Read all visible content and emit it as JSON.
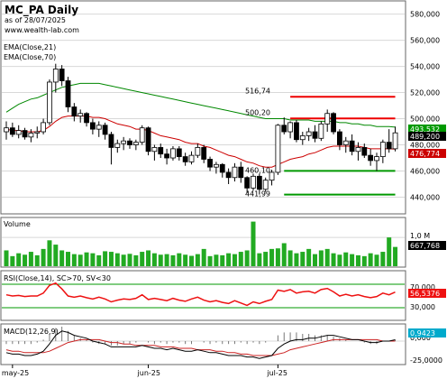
{
  "header": {
    "title": "MC_PA Daily",
    "date": "as of 28/07/2025",
    "site": "www.wealth-lab.com",
    "ema21": "EMA(Close,21)",
    "ema70": "EMA(Close,70)"
  },
  "colors": {
    "up": "#ffffff",
    "down": "#000000",
    "ema21": "#cc0000",
    "ema70": "#008800",
    "volume": "#22aa22",
    "rsi": "#ee1111",
    "macd": "#000000",
    "signal": "#cc2222",
    "hist": "#777777",
    "resistance": "#ee0000",
    "support": "#009900"
  },
  "price_panel": {
    "ymin": 430,
    "ymax": 588,
    "ticks": [
      "440,000",
      "460,000",
      "480,000",
      "500,000",
      "520,000",
      "540,000",
      "560,000",
      "580,000"
    ],
    "annotations": [
      {
        "text": "516,74",
        "value": 516.74
      },
      {
        "text": "500,20",
        "value": 500.2
      },
      {
        "text": "460,10",
        "value": 460.1
      },
      {
        "text": "441,99",
        "value": 441.99
      }
    ],
    "levels": [
      {
        "value": 516.74,
        "role": "resistance",
        "from": 46,
        "to": 63
      },
      {
        "value": 500.2,
        "role": "resistance",
        "from": 46,
        "to": 63
      },
      {
        "value": 460.1,
        "role": "support",
        "from": 45,
        "to": 63
      },
      {
        "value": 441.99,
        "role": "support",
        "from": 45,
        "to": 63
      }
    ],
    "last_close_label": "489,200",
    "ema21_label": "476,774",
    "ema70_label": "493,532"
  },
  "volume_panel": {
    "label": "Volume",
    "ticks": [
      "1,0 M"
    ],
    "last_label": "667,768"
  },
  "rsi_panel": {
    "label": "RSI(Close,14), SC>70, SV<30",
    "ticks": [
      "70,000",
      "30,000"
    ],
    "last_label": "56,5376",
    "levels": [
      70,
      30
    ]
  },
  "macd_panel": {
    "label": "MACD(12,26,9)",
    "ticks": [
      "0,000",
      "-25,0000"
    ],
    "last_label": "0,9423"
  },
  "x_axis": {
    "labels": [
      "may-25",
      "jun-25",
      "jul-25"
    ],
    "label_bars": [
      1,
      23,
      44
    ]
  },
  "chart_data": {
    "type": "candlestick",
    "ohlc": [
      [
        490,
        498,
        484,
        493
      ],
      [
        493,
        497,
        486,
        488
      ],
      [
        488,
        495,
        485,
        491
      ],
      [
        491,
        493,
        484,
        486
      ],
      [
        486,
        492,
        482,
        489
      ],
      [
        489,
        494,
        485,
        490
      ],
      [
        490,
        500,
        488,
        497
      ],
      [
        497,
        530,
        495,
        528
      ],
      [
        528,
        542,
        520,
        538
      ],
      [
        538,
        541,
        525,
        529
      ],
      [
        529,
        532,
        505,
        509
      ],
      [
        509,
        512,
        498,
        502
      ],
      [
        502,
        507,
        497,
        504
      ],
      [
        504,
        505,
        494,
        497
      ],
      [
        497,
        500,
        488,
        492
      ],
      [
        492,
        498,
        486,
        495
      ],
      [
        495,
        497,
        484,
        488
      ],
      [
        488,
        490,
        465,
        478
      ],
      [
        478,
        484,
        474,
        481
      ],
      [
        481,
        486,
        476,
        483
      ],
      [
        483,
        485,
        477,
        480
      ],
      [
        480,
        484,
        476,
        482
      ],
      [
        482,
        495,
        480,
        493
      ],
      [
        493,
        494,
        472,
        475
      ],
      [
        475,
        480,
        468,
        478
      ],
      [
        478,
        481,
        470,
        473
      ],
      [
        473,
        477,
        465,
        470
      ],
      [
        470,
        479,
        468,
        477
      ],
      [
        477,
        479,
        468,
        471
      ],
      [
        471,
        474,
        464,
        467
      ],
      [
        467,
        475,
        465,
        472
      ],
      [
        472,
        481,
        470,
        478
      ],
      [
        478,
        480,
        466,
        469
      ],
      [
        469,
        471,
        460,
        463
      ],
      [
        463,
        467,
        458,
        465
      ],
      [
        465,
        466,
        455,
        459
      ],
      [
        459,
        462,
        450,
        455
      ],
      [
        455,
        466,
        452,
        463
      ],
      [
        463,
        467,
        451,
        455
      ],
      [
        455,
        456,
        443,
        447
      ],
      [
        447,
        458,
        445,
        456
      ],
      [
        456,
        458,
        442,
        446
      ],
      [
        446,
        455,
        444,
        453
      ],
      [
        453,
        461,
        449,
        459
      ],
      [
        459,
        496,
        457,
        495
      ],
      [
        495,
        501,
        488,
        490
      ],
      [
        490,
        498,
        485,
        497
      ],
      [
        497,
        499,
        482,
        484
      ],
      [
        484,
        490,
        480,
        487
      ],
      [
        487,
        493,
        483,
        490
      ],
      [
        490,
        495,
        482,
        485
      ],
      [
        485,
        498,
        483,
        496
      ],
      [
        496,
        507,
        490,
        504
      ],
      [
        504,
        505,
        488,
        490
      ],
      [
        490,
        492,
        476,
        480
      ],
      [
        480,
        486,
        474,
        483
      ],
      [
        483,
        488,
        472,
        475
      ],
      [
        475,
        482,
        468,
        478
      ],
      [
        478,
        481,
        470,
        472
      ],
      [
        472,
        477,
        464,
        468
      ],
      [
        468,
        474,
        460,
        471
      ],
      [
        471,
        484,
        466,
        482
      ],
      [
        482,
        492,
        474,
        477
      ],
      [
        477,
        494,
        475,
        489.2
      ]
    ],
    "ema21": [
      492,
      491,
      491,
      490,
      490,
      490,
      491,
      494,
      498,
      501,
      502,
      502,
      502,
      502,
      501,
      501,
      500,
      498,
      496,
      495,
      494,
      492,
      492,
      491,
      489,
      487,
      486,
      485,
      484,
      482,
      481,
      481,
      479,
      478,
      476,
      474,
      472,
      471,
      469,
      467,
      466,
      464,
      463,
      463,
      465,
      467,
      469,
      470,
      471,
      473,
      474,
      476,
      478,
      479,
      479,
      479,
      479,
      479,
      478,
      477,
      477,
      477,
      477,
      476.77
    ],
    "ema70": [
      505,
      508,
      511,
      513,
      515,
      516,
      518,
      520,
      522,
      524,
      525,
      526,
      527,
      527,
      527,
      527,
      526,
      525,
      524,
      523,
      522,
      521,
      520,
      519,
      518,
      517,
      516,
      515,
      514,
      513,
      512,
      511,
      510,
      509,
      508,
      507,
      506,
      505,
      504,
      503,
      502,
      501,
      500,
      500,
      500,
      500,
      499,
      499,
      499,
      499,
      498,
      498,
      498,
      498,
      497,
      497,
      496,
      496,
      495,
      495,
      494,
      494,
      494,
      493.53
    ],
    "volume": [
      0.55,
      0.35,
      0.45,
      0.4,
      0.5,
      0.38,
      0.6,
      0.9,
      0.75,
      0.55,
      0.5,
      0.42,
      0.4,
      0.48,
      0.45,
      0.38,
      0.52,
      0.5,
      0.45,
      0.4,
      0.43,
      0.38,
      0.5,
      0.55,
      0.45,
      0.4,
      0.42,
      0.38,
      0.45,
      0.4,
      0.36,
      0.42,
      0.6,
      0.35,
      0.4,
      0.38,
      0.45,
      0.42,
      0.5,
      0.55,
      1.55,
      0.45,
      0.5,
      0.6,
      0.62,
      0.8,
      0.55,
      0.45,
      0.5,
      0.6,
      0.42,
      0.55,
      0.6,
      0.45,
      0.4,
      0.48,
      0.42,
      0.38,
      0.35,
      0.45,
      0.4,
      0.5,
      1.0,
      0.67
    ],
    "rsi": [
      52,
      50,
      51,
      49,
      50,
      50,
      55,
      68,
      72,
      62,
      50,
      48,
      50,
      47,
      45,
      48,
      45,
      40,
      43,
      45,
      44,
      46,
      52,
      44,
      46,
      44,
      42,
      46,
      43,
      41,
      45,
      48,
      43,
      40,
      42,
      39,
      37,
      42,
      38,
      34,
      40,
      37,
      41,
      44,
      60,
      58,
      61,
      55,
      57,
      58,
      55,
      61,
      63,
      57,
      50,
      53,
      50,
      52,
      49,
      47,
      49,
      55,
      52,
      56.54
    ],
    "macd": [
      -8,
      -9,
      -9,
      -10,
      -10,
      -9,
      -7,
      -2,
      4,
      7,
      6,
      4,
      3,
      2,
      0,
      -1,
      -2,
      -4,
      -4,
      -4,
      -4,
      -4,
      -3,
      -4,
      -5,
      -5,
      -6,
      -5,
      -6,
      -7,
      -7,
      -6,
      -7,
      -8,
      -8,
      -9,
      -10,
      -10,
      -10,
      -11,
      -11,
      -12,
      -11,
      -10,
      -5,
      -2,
      0,
      1,
      1,
      2,
      2,
      3,
      4,
      4,
      3,
      2,
      1,
      1,
      0,
      -1,
      -1,
      0,
      0,
      0.94
    ],
    "signal": [
      -6,
      -7,
      -7,
      -8,
      -8,
      -8,
      -8,
      -7,
      -5,
      -3,
      -1,
      0,
      1,
      1,
      1,
      1,
      0,
      -1,
      -1,
      -2,
      -2,
      -3,
      -3,
      -3,
      -3,
      -4,
      -4,
      -4,
      -5,
      -5,
      -5,
      -6,
      -6,
      -6,
      -7,
      -7,
      -8,
      -8,
      -9,
      -9,
      -10,
      -10,
      -10,
      -10,
      -9,
      -8,
      -6,
      -5,
      -4,
      -3,
      -2,
      -1,
      0,
      1,
      1,
      1,
      1,
      1,
      1,
      1,
      1,
      0,
      0,
      0
    ]
  }
}
